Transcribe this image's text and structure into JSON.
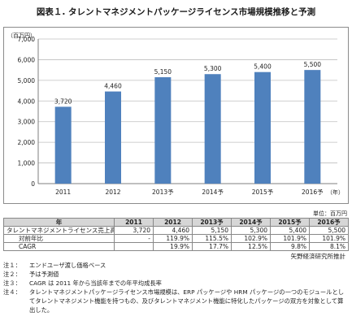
{
  "title": "図表１. タレントマネジメントパッケージライセンス市場規模推移と予測",
  "chart_data": {
    "type": "bar",
    "ylabel": "（百万円）",
    "xlabel": "（年）",
    "categories": [
      "2011",
      "2012",
      "2013予",
      "2014予",
      "2015予",
      "2016予"
    ],
    "values": [
      3720,
      4460,
      5150,
      5300,
      5400,
      5500
    ],
    "value_labels": [
      "3,720",
      "4,460",
      "5,150",
      "5,300",
      "5,400",
      "5,500"
    ],
    "yticks": [
      0,
      1000,
      2000,
      3000,
      4000,
      5000,
      6000,
      7000
    ],
    "ytick_labels": [
      "0",
      "1,000",
      "2,000",
      "3,000",
      "4,000",
      "5,000",
      "6,000",
      "7,000"
    ],
    "ylim": [
      0,
      7000
    ],
    "grid": true,
    "bar_color": "#4f81bd"
  },
  "table": {
    "unit": "単位：百万円",
    "header": [
      "年",
      "2011",
      "2012",
      "2013予",
      "2014予",
      "2015予",
      "2016予"
    ],
    "rows": [
      {
        "label": "タレントマネジメントライセンス売上高",
        "cells": [
          "3,720",
          "4,460",
          "5,150",
          "5,300",
          "5,400",
          "5,500"
        ]
      },
      {
        "label": "対前年比",
        "cells": [
          "-",
          "119.9%",
          "115.5%",
          "102.9%",
          "101.9%",
          "101.9%"
        ]
      },
      {
        "label": "CAGR",
        "cells": [
          "",
          "19.9%",
          "17.7%",
          "12.5%",
          "9.8%",
          "8.1%"
        ]
      }
    ]
  },
  "source": "矢野経済研究所推計",
  "notes": [
    {
      "label": "注１：",
      "text": "エンドユーザ渡し価格ベース"
    },
    {
      "label": "注２：",
      "text": "予は予測値"
    },
    {
      "label": "注３：",
      "text": "CAGR は 2011 年から当該年までの年平均成長率"
    },
    {
      "label": "注４：",
      "text": "タレントマネジメントパッケージライセンス市場規模は、ERP パッケージや HRM パッケージの一つのモジュールとしてタレントマネジメント機能を持つもの、及びタレントマネジメント機能に特化したパッケージの双方を対象として算出した。"
    }
  ]
}
